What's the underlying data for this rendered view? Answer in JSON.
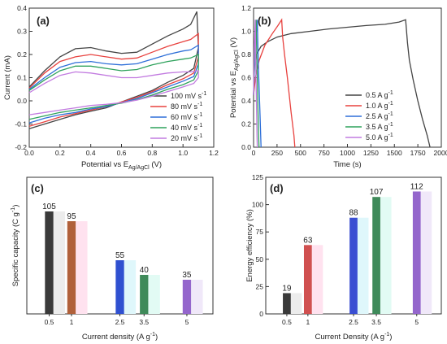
{
  "chart_data": [
    {
      "panel_label": "(a)",
      "type": "line",
      "xlabel": "Potential vs E",
      "xlabel_sub": "Ag/AgCl",
      "xlabel_unit": " (V)",
      "ylabel": "Current (mA)",
      "xlim": [
        0,
        1.2
      ],
      "ylim": [
        -0.2,
        0.4
      ],
      "xticks": [
        "0.0",
        "0.2",
        "0.4",
        "0.6",
        "0.8",
        "1.0",
        "1.2"
      ],
      "yticks": [
        "-0.2",
        "-0.1",
        "0.0",
        "0.1",
        "0.2",
        "0.3",
        "0.4"
      ],
      "legend_position": "bottom-right",
      "series": [
        {
          "name": "100 mV s",
          "name_sup": "-1",
          "color": "#444444",
          "upper": [
            [
              0,
              0.06
            ],
            [
              0.1,
              0.13
            ],
            [
              0.2,
              0.19
            ],
            [
              0.3,
              0.225
            ],
            [
              0.4,
              0.23
            ],
            [
              0.5,
              0.215
            ],
            [
              0.6,
              0.205
            ],
            [
              0.7,
              0.21
            ],
            [
              0.8,
              0.245
            ],
            [
              0.9,
              0.28
            ],
            [
              1.0,
              0.31
            ],
            [
              1.05,
              0.33
            ],
            [
              1.09,
              0.385
            ]
          ],
          "lower": [
            [
              1.09,
              0.385
            ],
            [
              1.1,
              0.23
            ],
            [
              1.07,
              0.14
            ],
            [
              1.0,
              0.11
            ],
            [
              0.9,
              0.08
            ],
            [
              0.8,
              0.045
            ],
            [
              0.7,
              0.02
            ],
            [
              0.6,
              -0.005
            ],
            [
              0.5,
              -0.03
            ],
            [
              0.4,
              -0.045
            ],
            [
              0.3,
              -0.06
            ],
            [
              0.2,
              -0.08
            ],
            [
              0.1,
              -0.1
            ],
            [
              0,
              -0.12
            ]
          ]
        },
        {
          "name": "80 mV s",
          "name_sup": "-1",
          "color": "#e8423f",
          "upper": [
            [
              0,
              0.055
            ],
            [
              0.1,
              0.12
            ],
            [
              0.2,
              0.17
            ],
            [
              0.3,
              0.19
            ],
            [
              0.4,
              0.2
            ],
            [
              0.5,
              0.19
            ],
            [
              0.6,
              0.18
            ],
            [
              0.7,
              0.185
            ],
            [
              0.8,
              0.21
            ],
            [
              0.9,
              0.235
            ],
            [
              1.0,
              0.255
            ],
            [
              1.05,
              0.265
            ],
            [
              1.1,
              0.29
            ]
          ],
          "lower": [
            [
              1.1,
              0.29
            ],
            [
              1.1,
              0.19
            ],
            [
              1.07,
              0.12
            ],
            [
              1.0,
              0.095
            ],
            [
              0.9,
              0.07
            ],
            [
              0.8,
              0.04
            ],
            [
              0.7,
              0.015
            ],
            [
              0.6,
              -0.005
            ],
            [
              0.5,
              -0.025
            ],
            [
              0.4,
              -0.04
            ],
            [
              0.3,
              -0.055
            ],
            [
              0.2,
              -0.07
            ],
            [
              0.1,
              -0.09
            ],
            [
              0,
              -0.11
            ]
          ]
        },
        {
          "name": "60 mV s",
          "name_sup": "-1",
          "color": "#2e6fd8",
          "upper": [
            [
              0,
              0.05
            ],
            [
              0.1,
              0.1
            ],
            [
              0.2,
              0.145
            ],
            [
              0.3,
              0.165
            ],
            [
              0.4,
              0.17
            ],
            [
              0.5,
              0.16
            ],
            [
              0.6,
              0.155
            ],
            [
              0.7,
              0.16
            ],
            [
              0.8,
              0.18
            ],
            [
              0.9,
              0.2
            ],
            [
              1.0,
              0.215
            ],
            [
              1.05,
              0.22
            ],
            [
              1.1,
              0.24
            ]
          ],
          "lower": [
            [
              1.1,
              0.24
            ],
            [
              1.1,
              0.16
            ],
            [
              1.07,
              0.105
            ],
            [
              1.0,
              0.085
            ],
            [
              0.9,
              0.06
            ],
            [
              0.8,
              0.035
            ],
            [
              0.7,
              0.01
            ],
            [
              0.6,
              -0.008
            ],
            [
              0.5,
              -0.025
            ],
            [
              0.4,
              -0.035
            ],
            [
              0.3,
              -0.05
            ],
            [
              0.2,
              -0.06
            ],
            [
              0.1,
              -0.075
            ],
            [
              0,
              -0.095
            ]
          ]
        },
        {
          "name": "40 mV s",
          "name_sup": "-1",
          "color": "#2fa25c",
          "upper": [
            [
              0,
              0.045
            ],
            [
              0.1,
              0.09
            ],
            [
              0.2,
              0.13
            ],
            [
              0.3,
              0.15
            ],
            [
              0.4,
              0.15
            ],
            [
              0.5,
              0.14
            ],
            [
              0.6,
              0.13
            ],
            [
              0.7,
              0.135
            ],
            [
              0.8,
              0.155
            ],
            [
              0.9,
              0.17
            ],
            [
              1.0,
              0.18
            ],
            [
              1.05,
              0.185
            ],
            [
              1.1,
              0.2
            ]
          ],
          "lower": [
            [
              1.1,
              0.2
            ],
            [
              1.1,
              0.13
            ],
            [
              1.07,
              0.09
            ],
            [
              1.0,
              0.07
            ],
            [
              0.9,
              0.05
            ],
            [
              0.8,
              0.025
            ],
            [
              0.7,
              0.005
            ],
            [
              0.6,
              -0.01
            ],
            [
              0.5,
              -0.02
            ],
            [
              0.4,
              -0.03
            ],
            [
              0.3,
              -0.04
            ],
            [
              0.2,
              -0.05
            ],
            [
              0.1,
              -0.065
            ],
            [
              0,
              -0.08
            ]
          ]
        },
        {
          "name": "20 mV s",
          "name_sup": "-1",
          "color": "#c27be0",
          "upper": [
            [
              0,
              0.035
            ],
            [
              0.1,
              0.075
            ],
            [
              0.2,
              0.11
            ],
            [
              0.3,
              0.125
            ],
            [
              0.4,
              0.12
            ],
            [
              0.5,
              0.11
            ],
            [
              0.6,
              0.1
            ],
            [
              0.7,
              0.1
            ],
            [
              0.8,
              0.11
            ],
            [
              0.9,
              0.12
            ],
            [
              1.0,
              0.125
            ],
            [
              1.05,
              0.125
            ],
            [
              1.1,
              0.13
            ]
          ],
          "lower": [
            [
              1.1,
              0.13
            ],
            [
              1.1,
              0.1
            ],
            [
              1.07,
              0.075
            ],
            [
              1.0,
              0.06
            ],
            [
              0.9,
              0.04
            ],
            [
              0.8,
              0.02
            ],
            [
              0.7,
              0.003
            ],
            [
              0.6,
              -0.008
            ],
            [
              0.5,
              -0.015
            ],
            [
              0.4,
              -0.02
            ],
            [
              0.3,
              -0.03
            ],
            [
              0.2,
              -0.04
            ],
            [
              0.1,
              -0.05
            ],
            [
              0,
              -0.06
            ]
          ]
        }
      ]
    },
    {
      "panel_label": "(b)",
      "type": "line",
      "xlabel": "Time (s)",
      "ylabel": "Potential vs E",
      "ylabel_sub": "Ag/AgCl",
      "ylabel_unit": " (V)",
      "xlim": [
        0,
        2000
      ],
      "ylim": [
        0,
        1.2
      ],
      "xticks": [
        "0",
        "250",
        "500",
        "750",
        "1000",
        "1250",
        "1500",
        "1750",
        "2000"
      ],
      "yticks": [
        "0.0",
        "0.2",
        "0.4",
        "0.6",
        "0.8",
        "1.0",
        "1.2"
      ],
      "legend_position": "bottom-right",
      "series": [
        {
          "name": "0.5 A g",
          "name_sup": "-1",
          "color": "#444444",
          "points": [
            [
              0,
              0.45
            ],
            [
              5,
              0.62
            ],
            [
              10,
              0.7
            ],
            [
              30,
              0.8
            ],
            [
              80,
              0.87
            ],
            [
              150,
              0.91
            ],
            [
              250,
              0.95
            ],
            [
              400,
              0.98
            ],
            [
              600,
              1.0
            ],
            [
              800,
              1.02
            ],
            [
              1000,
              1.035
            ],
            [
              1200,
              1.05
            ],
            [
              1400,
              1.06
            ],
            [
              1550,
              1.08
            ],
            [
              1620,
              1.1
            ],
            [
              1640,
              0.9
            ],
            [
              1660,
              0.75
            ],
            [
              1700,
              0.58
            ],
            [
              1750,
              0.4
            ],
            [
              1800,
              0.24
            ],
            [
              1850,
              0.1
            ],
            [
              1880,
              0
            ]
          ]
        },
        {
          "name": "1.0 A g",
          "name_sup": "-1",
          "color": "#e8423f",
          "points": [
            [
              0,
              0.45
            ],
            [
              20,
              0.6
            ],
            [
              60,
              0.75
            ],
            [
              120,
              0.88
            ],
            [
              200,
              0.98
            ],
            [
              260,
              1.05
            ],
            [
              300,
              1.1
            ],
            [
              310,
              0.95
            ],
            [
              330,
              0.8
            ],
            [
              360,
              0.6
            ],
            [
              400,
              0.3
            ],
            [
              430,
              0.1
            ],
            [
              440,
              0
            ]
          ]
        },
        {
          "name": "2.5 A g",
          "name_sup": "-1",
          "color": "#2e6fd8",
          "points": [
            [
              0,
              0.45
            ],
            [
              15,
              0.8
            ],
            [
              30,
              1.0
            ],
            [
              40,
              1.1
            ],
            [
              45,
              0.9
            ],
            [
              55,
              0.6
            ],
            [
              70,
              0.25
            ],
            [
              80,
              0
            ]
          ]
        },
        {
          "name": "3.5 A g",
          "name_sup": "-1",
          "color": "#2fa25c",
          "points": [
            [
              0,
              0.45
            ],
            [
              10,
              0.8
            ],
            [
              22,
              1.0
            ],
            [
              28,
              1.1
            ],
            [
              33,
              0.85
            ],
            [
              42,
              0.5
            ],
            [
              52,
              0.15
            ],
            [
              58,
              0
            ]
          ]
        },
        {
          "name": "5.0 A g",
          "name_sup": "-1",
          "color": "#c27be0",
          "points": [
            [
              0,
              0.45
            ],
            [
              8,
              0.85
            ],
            [
              14,
              1.0
            ],
            [
              18,
              1.1
            ],
            [
              22,
              0.8
            ],
            [
              30,
              0.4
            ],
            [
              36,
              0.1
            ],
            [
              40,
              0
            ]
          ]
        }
      ]
    },
    {
      "panel_label": "(c)",
      "type": "bar",
      "xlabel": "Current density (A g",
      "xlabel_sup": "-1",
      "xlabel_tail": ")",
      "ylabel": "Specific capacity (C g",
      "ylabel_sup": "-1",
      "ylabel_tail": ")",
      "ylim": [
        0,
        140
      ],
      "categories": [
        "0.5",
        "1",
        "2.5",
        "3.5",
        "5"
      ],
      "values": [
        105,
        95,
        55,
        40,
        35
      ],
      "labels": [
        "105",
        "95",
        "55",
        "40",
        "35"
      ],
      "colors": [
        "#3a3a3a",
        "#b0603a",
        "#2f50d0",
        "#3f8a5a",
        "#9466cc"
      ],
      "shadow_colors": [
        "#ececec",
        "#ffe2ef",
        "#dff7fb",
        "#e2fbf4",
        "#f0e8f9"
      ]
    },
    {
      "panel_label": "(d)",
      "type": "bar",
      "xlabel": "Current Density (A g",
      "xlabel_sup": "-1",
      "xlabel_tail": ")",
      "ylabel": "Energy efficiency (%)",
      "ylim": [
        0,
        125
      ],
      "yticks": [
        "0",
        "25",
        "50",
        "75",
        "100",
        "125"
      ],
      "categories": [
        "0.5",
        "1",
        "2.5",
        "3.5",
        "5"
      ],
      "values": [
        19,
        63,
        88,
        107,
        112
      ],
      "labels": [
        "19",
        "63",
        "88",
        "107",
        "112"
      ],
      "colors": [
        "#3a3a3a",
        "#d05050",
        "#3a4ed2",
        "#3f8a5a",
        "#9466cc"
      ],
      "shadow_colors": [
        "#ececec",
        "#ffe2ef",
        "#dff7fb",
        "#e2fbf4",
        "#f0e8f9"
      ]
    }
  ]
}
